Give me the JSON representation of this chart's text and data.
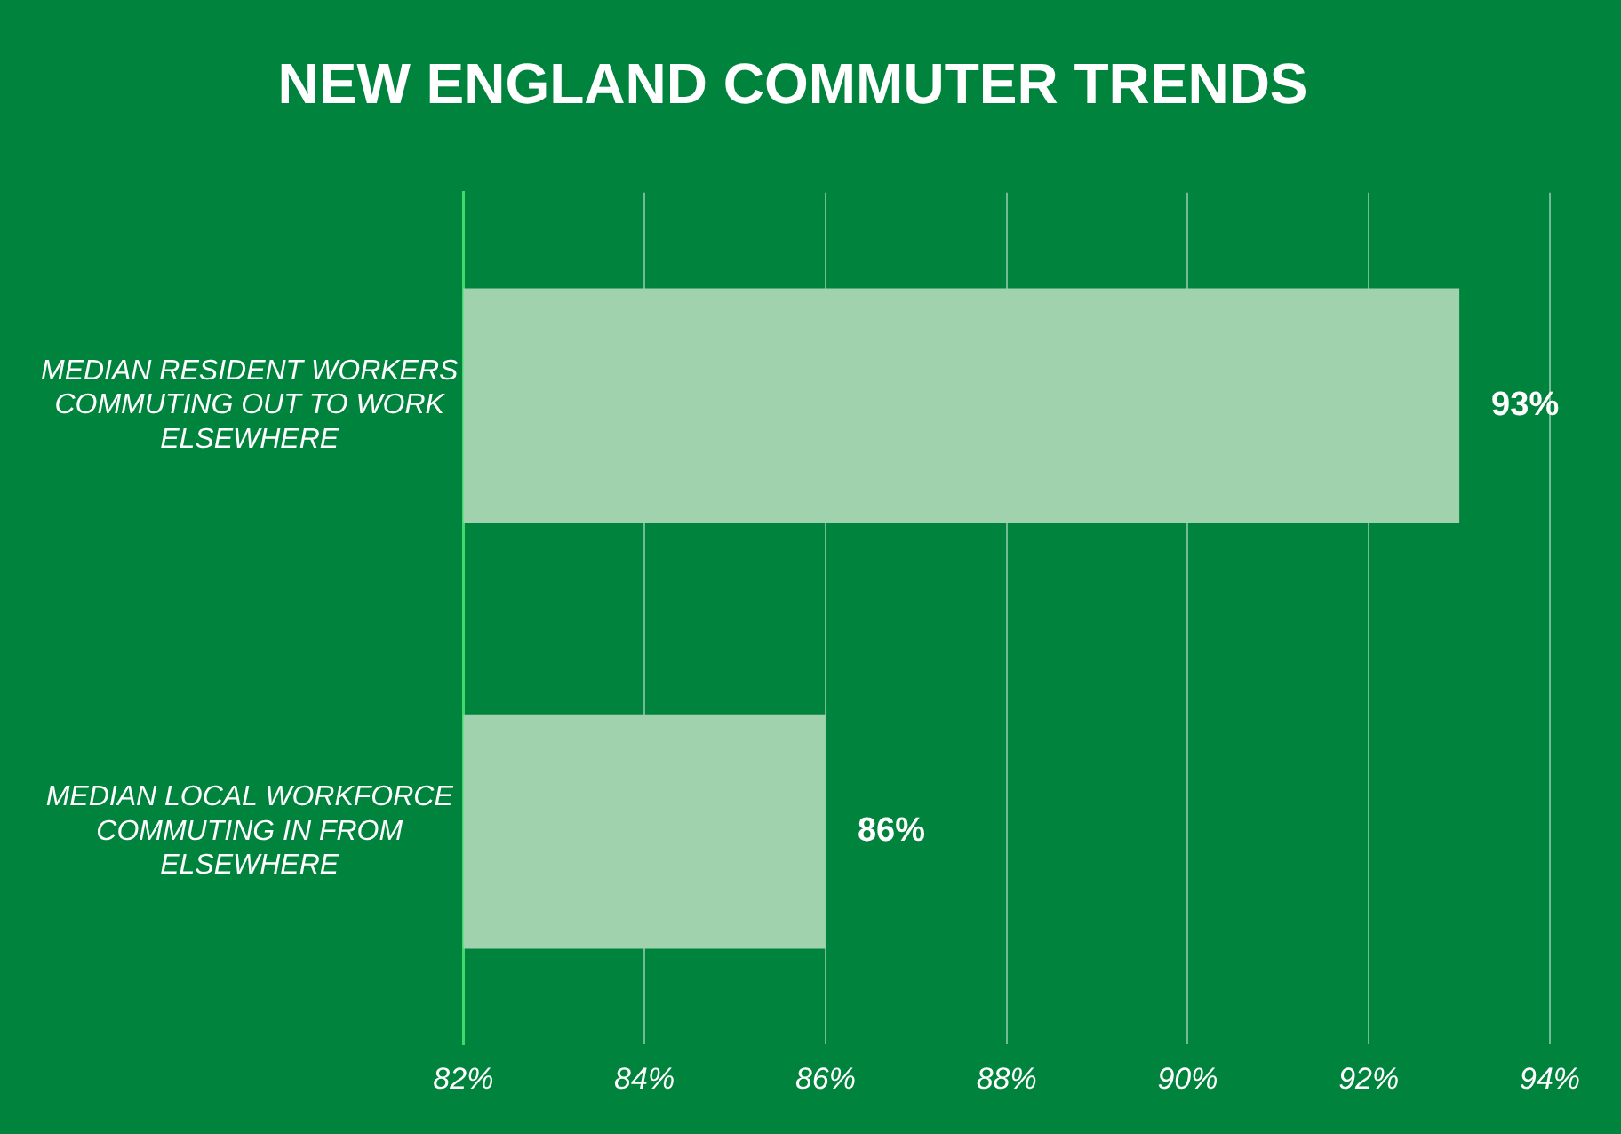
{
  "chart_data": {
    "type": "bar",
    "orientation": "horizontal",
    "title": "NEW ENGLAND COMMUTER TRENDS",
    "categories": [
      "MEDIAN RESIDENT WORKERS COMMUTING OUT TO WORK ELSEWHERE",
      "MEDIAN LOCAL WORKFORCE COMMUTING IN FROM ELSEWHERE"
    ],
    "values": [
      93,
      86
    ],
    "color": "#9fd2ad",
    "value_labels": [
      "93%",
      "86%"
    ],
    "xlim": [
      82,
      94
    ],
    "xticks": [
      {
        "value": 82,
        "label": "82%"
      },
      {
        "value": 84,
        "label": "84%"
      },
      {
        "value": 86,
        "label": "86%"
      },
      {
        "value": 88,
        "label": "88%"
      },
      {
        "value": 90,
        "label": "90%"
      },
      {
        "value": 92,
        "label": "92%"
      },
      {
        "value": 94,
        "label": "94%"
      }
    ],
    "grid": "x",
    "legend": false
  }
}
